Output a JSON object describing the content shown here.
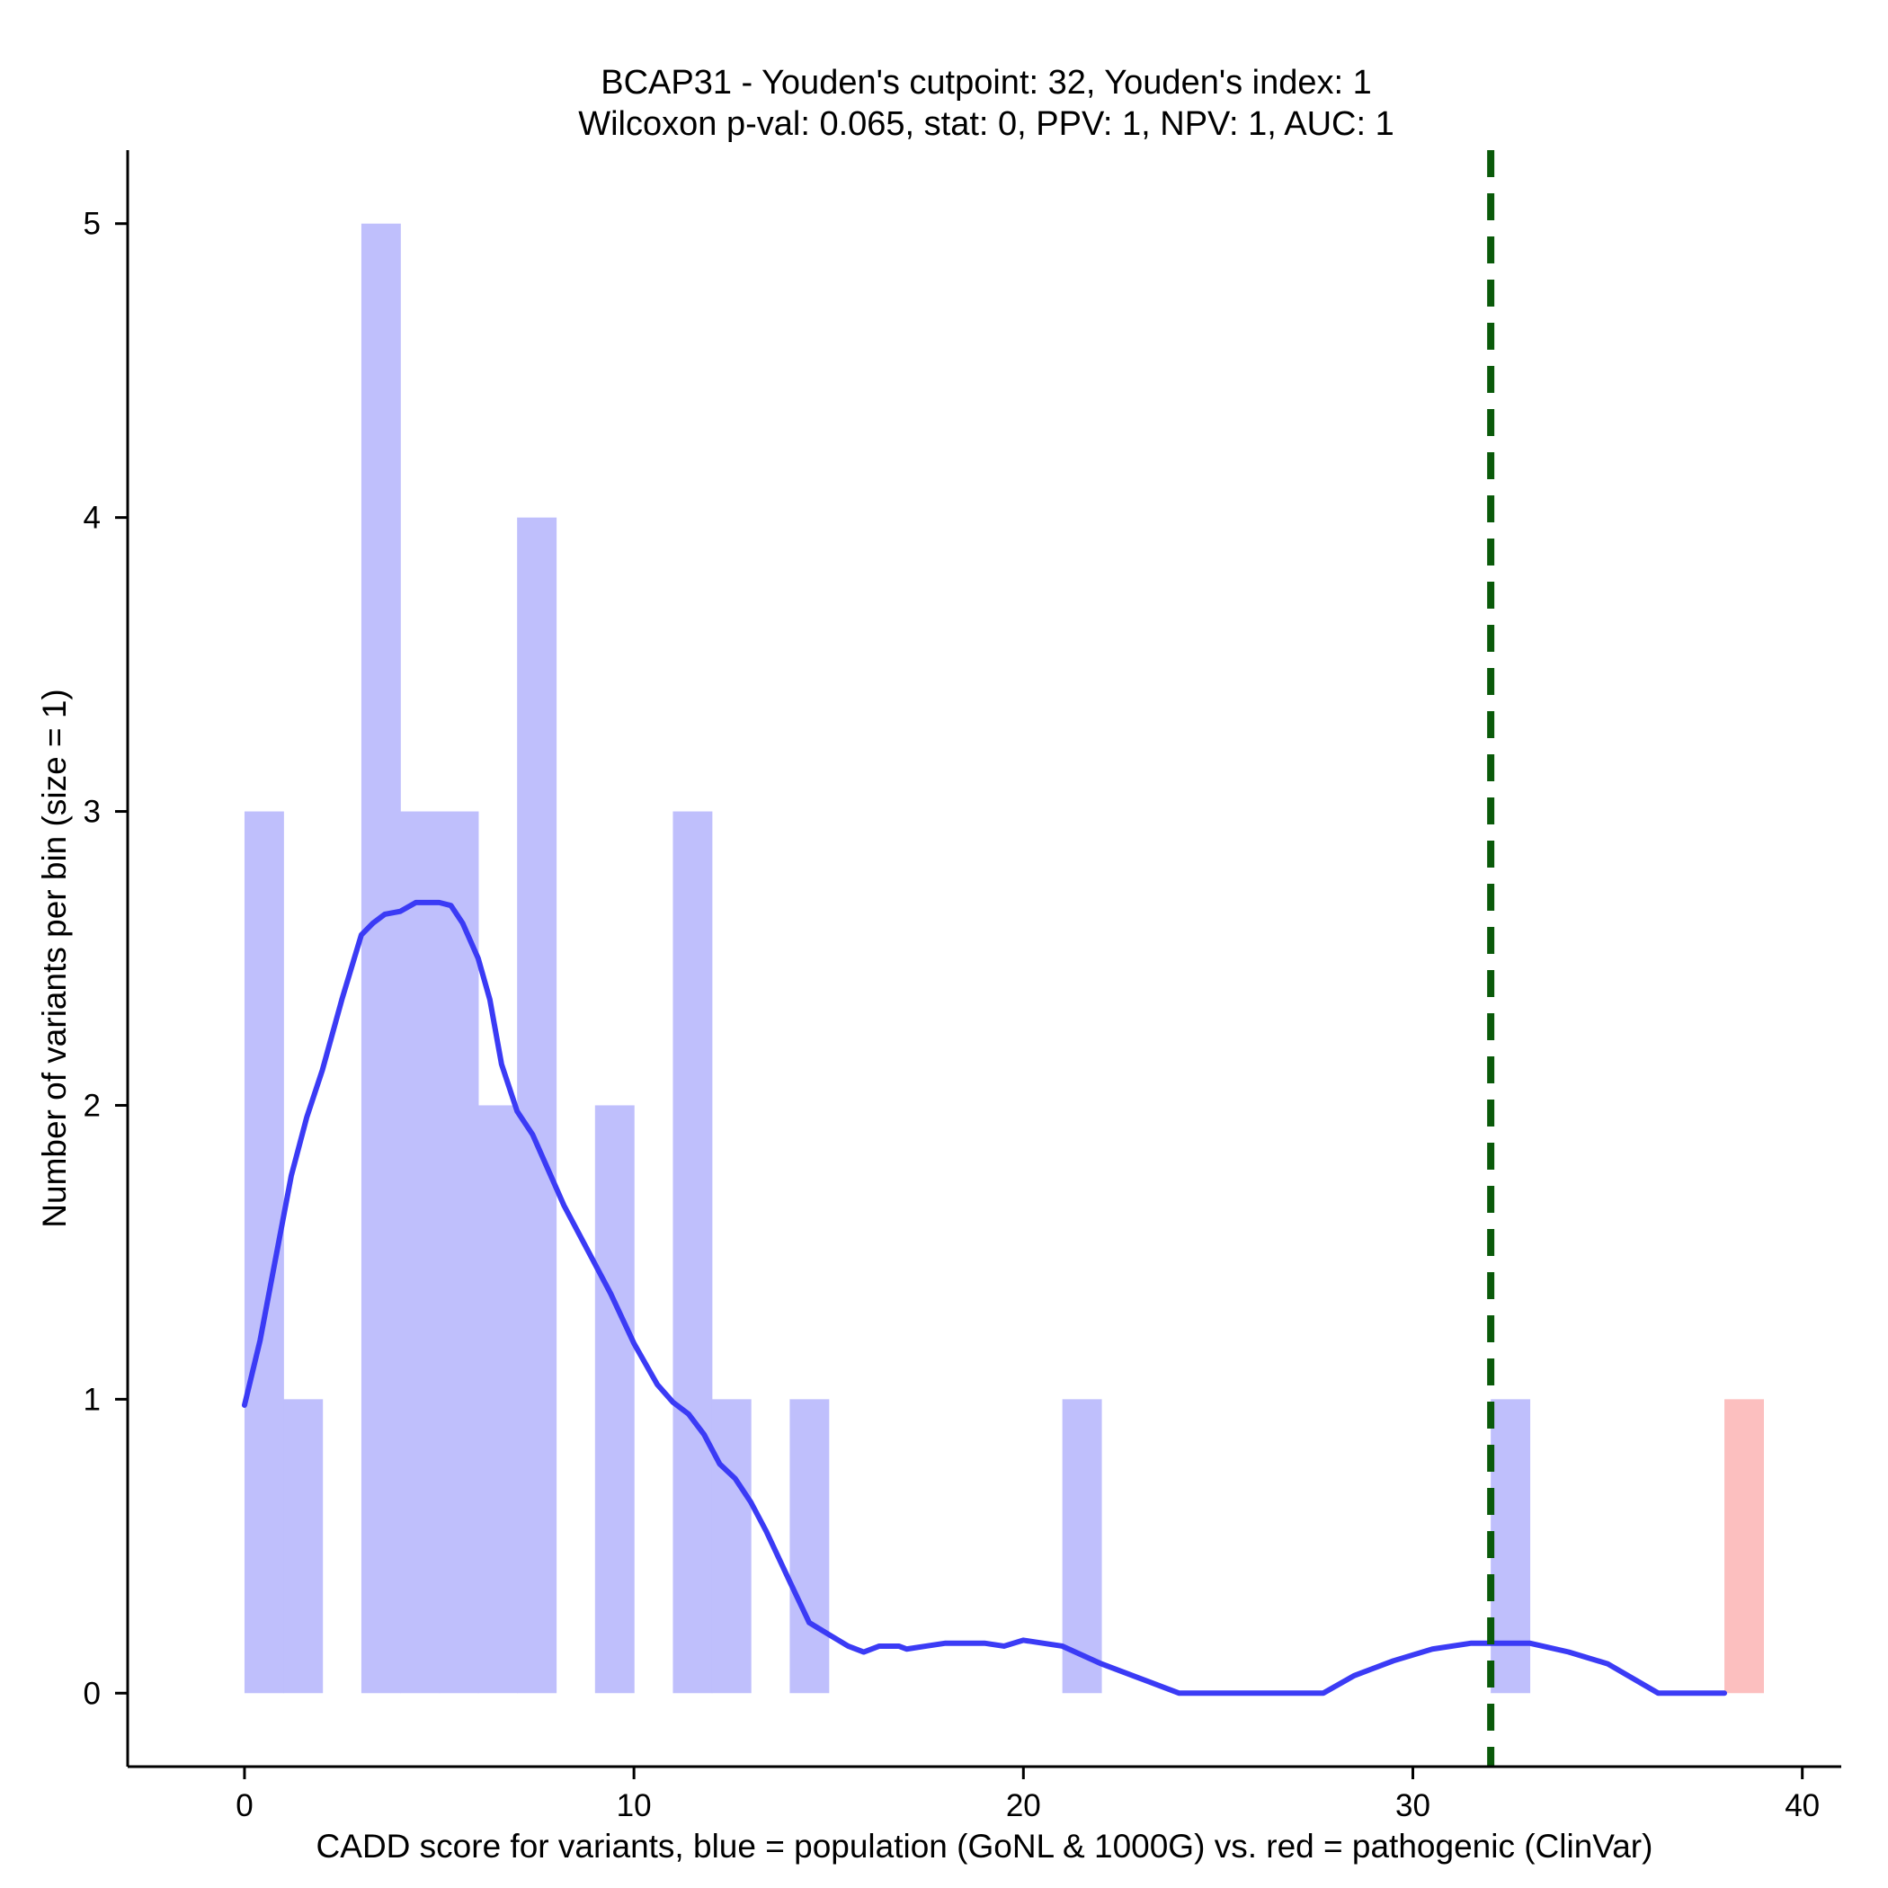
{
  "chart_data": {
    "type": "bar",
    "title": "BCAP31 - Youden's cutpoint: 32, Youden's index: 1",
    "subtitle": "Wilcoxon p-val: 0.065, stat: 0, PPV: 1, NPV: 1, AUC: 1",
    "xlabel": "CADD score for variants, blue = population (GoNL & 1000G) vs. red = pathogenic (ClinVar)",
    "ylabel": "Number of variants per bin (size = 1)",
    "xlim": [
      -3,
      41
    ],
    "ylim": [
      -0.25,
      5.25
    ],
    "x_ticks": [
      0,
      10,
      20,
      30,
      40
    ],
    "y_ticks": [
      0,
      1,
      2,
      3,
      4,
      5
    ],
    "bin_size": 1,
    "grid": false,
    "colors": {
      "population": "#bfbffc",
      "pathogenic": "#fcbfbf",
      "density": "#3b3bf5",
      "cutpoint": "#0a5a0a"
    },
    "series": [
      {
        "key": "population",
        "bins": [
          {
            "start": 0,
            "count": 3
          },
          {
            "start": 1,
            "count": 1
          },
          {
            "start": 3,
            "count": 5
          },
          {
            "start": 4,
            "count": 3
          },
          {
            "start": 5,
            "count": 3
          },
          {
            "start": 6,
            "count": 2
          },
          {
            "start": 7,
            "count": 4
          },
          {
            "start": 9,
            "count": 2
          },
          {
            "start": 11,
            "count": 3
          },
          {
            "start": 12,
            "count": 1
          },
          {
            "start": 14,
            "count": 1
          },
          {
            "start": 21,
            "count": 1
          },
          {
            "start": 32,
            "count": 1
          }
        ]
      },
      {
        "key": "pathogenic",
        "bins": [
          {
            "start": 38,
            "count": 1
          }
        ]
      }
    ],
    "density_curve": {
      "x": [
        0,
        0.4,
        0.8,
        1.2,
        1.6,
        2.0,
        2.5,
        3.0,
        3.3,
        3.6,
        4.0,
        4.4,
        4.8,
        5.0,
        5.3,
        5.6,
        6.0,
        6.3,
        6.6,
        7.0,
        7.4,
        7.8,
        8.2,
        8.6,
        9.0,
        9.4,
        10.0,
        10.6,
        11.0,
        11.4,
        11.8,
        12.2,
        12.6,
        13.0,
        13.4,
        14.0,
        14.5,
        15.0,
        15.5,
        15.9,
        16.3,
        16.8,
        17.0,
        17.5,
        18.0,
        18.5,
        19.0,
        19.5,
        20.0,
        21.0,
        22.0,
        23.0,
        24.0,
        25.4,
        26.5,
        27.7,
        28.5,
        29.5,
        30.5,
        31.5,
        32.0,
        33.0,
        34.0,
        35.0,
        36.3,
        37.0,
        38.0
      ],
      "y": [
        0.98,
        1.2,
        1.48,
        1.76,
        1.96,
        2.12,
        2.36,
        2.58,
        2.62,
        2.65,
        2.66,
        2.69,
        2.69,
        2.69,
        2.68,
        2.62,
        2.5,
        2.36,
        2.14,
        1.98,
        1.9,
        1.78,
        1.66,
        1.56,
        1.46,
        1.36,
        1.19,
        1.05,
        0.99,
        0.95,
        0.88,
        0.78,
        0.73,
        0.65,
        0.55,
        0.38,
        0.24,
        0.2,
        0.16,
        0.14,
        0.16,
        0.16,
        0.15,
        0.16,
        0.17,
        0.17,
        0.17,
        0.16,
        0.18,
        0.16,
        0.1,
        0.05,
        0.0,
        0.0,
        0.0,
        0.0,
        0.06,
        0.11,
        0.15,
        0.17,
        0.17,
        0.17,
        0.14,
        0.1,
        0.0,
        0.0,
        0.0
      ]
    },
    "cutpoint": 32
  }
}
